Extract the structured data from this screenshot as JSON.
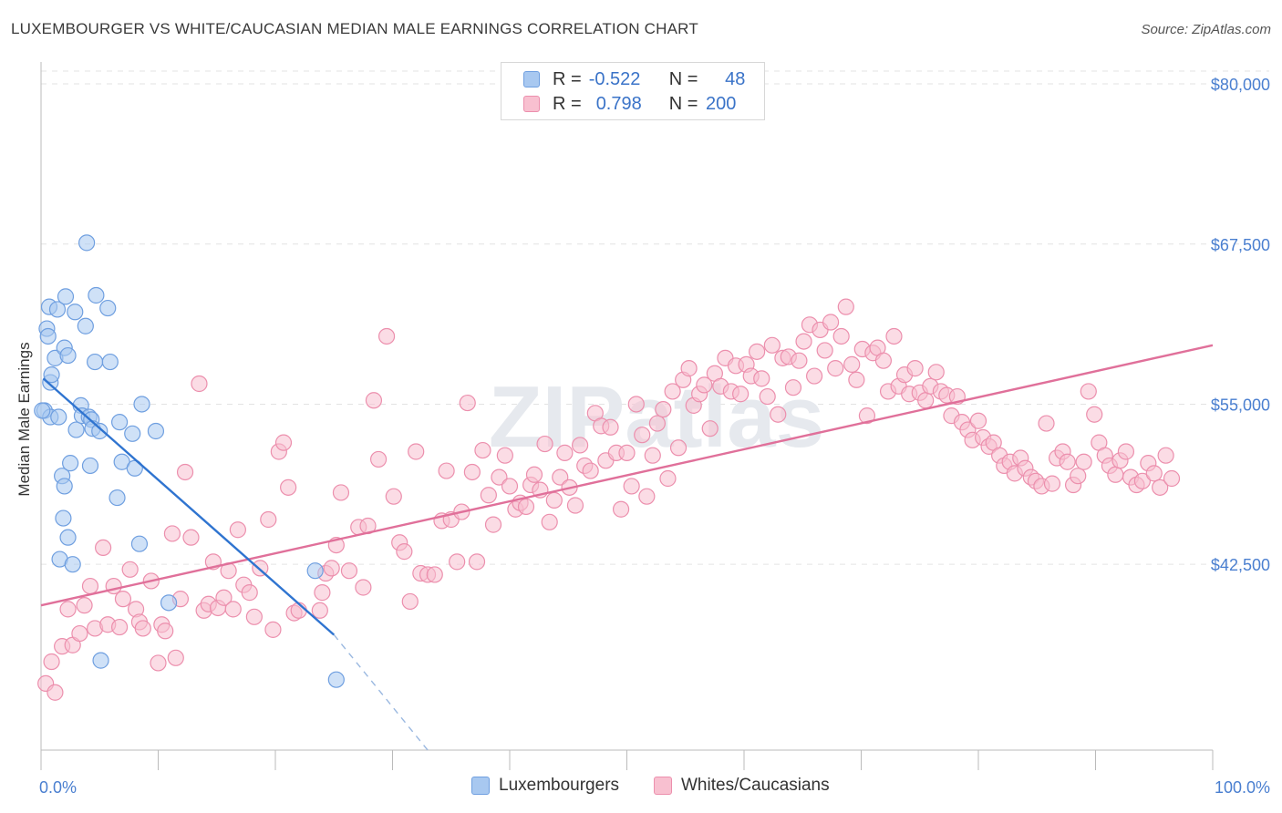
{
  "title": "LUXEMBOURGER VS WHITE/CAUCASIAN MEDIAN MALE EARNINGS CORRELATION CHART",
  "source": "Source: ZipAtlas.com",
  "watermark": "ZIPatlas",
  "legend": {
    "rows": [
      {
        "r_label": "R =",
        "r_value": "-0.522",
        "n_label": "N =",
        "n_value": "48",
        "color": "#a8c8f0",
        "stroke": "#6f9fe0"
      },
      {
        "r_label": "R =",
        "r_value": "0.798",
        "n_label": "N =",
        "n_value": "200",
        "color": "#f8c0d0",
        "stroke": "#ec8fad"
      }
    ]
  },
  "bottom_legend": [
    {
      "label": "Luxembourgers",
      "color": "#a8c8f0",
      "stroke": "#6f9fe0"
    },
    {
      "label": "Whites/Caucasians",
      "color": "#f8c0d0",
      "stroke": "#ec8fad"
    }
  ],
  "chart_data": {
    "type": "scatter",
    "xlabel": "",
    "ylabel": "Median Male Earnings",
    "x_tick_labels": [
      "0.0%",
      "100.0%"
    ],
    "y_tick_labels": [
      "$80,000",
      "$67,500",
      "$55,000",
      "$42,500"
    ],
    "y_ticks": [
      80000,
      67500,
      55000,
      42500
    ],
    "xlim": [
      0,
      100
    ],
    "ylim": [
      28000,
      81000
    ],
    "grid": true,
    "legend_placement": "top-center",
    "series": [
      {
        "name": "Luxembourgers",
        "color": "#6f9fe0",
        "fill": "#a8c8f0",
        "trend": {
          "x": [
            0.2,
            25
          ],
          "y": [
            57000,
            37000
          ],
          "dash_extend_to": [
            33,
            28000
          ]
        },
        "points": [
          [
            0.3,
            54500
          ],
          [
            0.5,
            60900
          ],
          [
            0.6,
            60300
          ],
          [
            0.7,
            62600
          ],
          [
            0.8,
            56700
          ],
          [
            0.8,
            54000
          ],
          [
            0.9,
            57300
          ],
          [
            1.2,
            58600
          ],
          [
            1.4,
            62400
          ],
          [
            1.5,
            54000
          ],
          [
            1.6,
            42900
          ],
          [
            1.8,
            49400
          ],
          [
            1.9,
            46100
          ],
          [
            2.0,
            48600
          ],
          [
            2.0,
            59400
          ],
          [
            2.1,
            63400
          ],
          [
            2.3,
            58800
          ],
          [
            2.3,
            44600
          ],
          [
            2.5,
            50400
          ],
          [
            2.7,
            42500
          ],
          [
            2.9,
            62200
          ],
          [
            3.0,
            53000
          ],
          [
            3.4,
            54900
          ],
          [
            3.5,
            54100
          ],
          [
            3.8,
            61100
          ],
          [
            3.9,
            67600
          ],
          [
            4.1,
            54000
          ],
          [
            4.2,
            50200
          ],
          [
            4.3,
            53800
          ],
          [
            4.4,
            53100
          ],
          [
            4.6,
            58300
          ],
          [
            4.7,
            63500
          ],
          [
            5.0,
            52900
          ],
          [
            5.1,
            35000
          ],
          [
            5.7,
            62500
          ],
          [
            5.9,
            58300
          ],
          [
            6.5,
            47700
          ],
          [
            6.7,
            53600
          ],
          [
            6.9,
            50500
          ],
          [
            7.8,
            52700
          ],
          [
            8.0,
            50000
          ],
          [
            8.4,
            44100
          ],
          [
            8.6,
            55000
          ],
          [
            9.8,
            52900
          ],
          [
            10.9,
            39500
          ],
          [
            23.4,
            42000
          ],
          [
            25.2,
            33500
          ],
          [
            0.1,
            54500
          ]
        ]
      },
      {
        "name": "Whites/Caucasians",
        "color": "#ec8fad",
        "fill": "#f8c0d0",
        "trend": {
          "x": [
            0,
            100
          ],
          "y": [
            39300,
            59600
          ]
        },
        "points": [
          [
            0.4,
            33200
          ],
          [
            0.9,
            34900
          ],
          [
            1.2,
            32500
          ],
          [
            1.8,
            36100
          ],
          [
            2.3,
            39000
          ],
          [
            2.7,
            36200
          ],
          [
            3.3,
            37100
          ],
          [
            3.7,
            39300
          ],
          [
            4.2,
            40800
          ],
          [
            4.6,
            37500
          ],
          [
            5.3,
            43800
          ],
          [
            5.7,
            37800
          ],
          [
            6.2,
            40800
          ],
          [
            6.7,
            37600
          ],
          [
            7.0,
            39800
          ],
          [
            7.6,
            42100
          ],
          [
            8.1,
            39000
          ],
          [
            8.4,
            38000
          ],
          [
            8.7,
            37500
          ],
          [
            9.4,
            41200
          ],
          [
            10.0,
            34800
          ],
          [
            10.3,
            37800
          ],
          [
            10.6,
            37300
          ],
          [
            11.2,
            44900
          ],
          [
            11.5,
            35200
          ],
          [
            11.9,
            39800
          ],
          [
            12.3,
            49700
          ],
          [
            12.8,
            44600
          ],
          [
            13.5,
            56600
          ],
          [
            13.9,
            38900
          ],
          [
            14.3,
            39400
          ],
          [
            14.7,
            42700
          ],
          [
            15.1,
            39100
          ],
          [
            15.6,
            39900
          ],
          [
            16.0,
            42000
          ],
          [
            16.4,
            39000
          ],
          [
            16.8,
            45200
          ],
          [
            17.3,
            40900
          ],
          [
            17.8,
            40300
          ],
          [
            18.2,
            38400
          ],
          [
            18.7,
            42200
          ],
          [
            19.4,
            46000
          ],
          [
            19.8,
            37400
          ],
          [
            20.3,
            51300
          ],
          [
            20.7,
            52000
          ],
          [
            21.1,
            48500
          ],
          [
            21.6,
            38700
          ],
          [
            22.0,
            38900
          ],
          [
            23.8,
            38900
          ],
          [
            24.0,
            40300
          ],
          [
            24.3,
            41800
          ],
          [
            24.8,
            42200
          ],
          [
            25.2,
            44000
          ],
          [
            25.6,
            48100
          ],
          [
            26.3,
            42000
          ],
          [
            27.1,
            45400
          ],
          [
            27.5,
            40700
          ],
          [
            27.9,
            45500
          ],
          [
            28.4,
            55300
          ],
          [
            28.8,
            50700
          ],
          [
            29.5,
            60300
          ],
          [
            30.1,
            47800
          ],
          [
            30.6,
            44200
          ],
          [
            31.0,
            43500
          ],
          [
            31.5,
            39600
          ],
          [
            32.0,
            51300
          ],
          [
            32.4,
            41800
          ],
          [
            33.0,
            41700
          ],
          [
            33.6,
            41700
          ],
          [
            34.2,
            45900
          ],
          [
            34.6,
            49800
          ],
          [
            35.0,
            46000
          ],
          [
            35.5,
            42700
          ],
          [
            35.9,
            46600
          ],
          [
            36.4,
            55100
          ],
          [
            36.8,
            49700
          ],
          [
            37.2,
            42700
          ],
          [
            37.7,
            51400
          ],
          [
            38.2,
            47900
          ],
          [
            38.6,
            45600
          ],
          [
            39.1,
            49300
          ],
          [
            39.6,
            51000
          ],
          [
            40.0,
            48600
          ],
          [
            40.5,
            46800
          ],
          [
            40.9,
            47300
          ],
          [
            41.4,
            47000
          ],
          [
            41.8,
            48700
          ],
          [
            42.1,
            49500
          ],
          [
            42.6,
            48300
          ],
          [
            43.0,
            51900
          ],
          [
            43.4,
            45800
          ],
          [
            43.8,
            47500
          ],
          [
            44.3,
            49300
          ],
          [
            44.7,
            51200
          ],
          [
            45.1,
            48500
          ],
          [
            45.6,
            47100
          ],
          [
            46.0,
            51800
          ],
          [
            46.4,
            50200
          ],
          [
            46.9,
            49800
          ],
          [
            47.3,
            54300
          ],
          [
            47.8,
            53300
          ],
          [
            48.2,
            50600
          ],
          [
            48.6,
            53200
          ],
          [
            49.1,
            51200
          ],
          [
            49.5,
            46800
          ],
          [
            50.0,
            51200
          ],
          [
            50.4,
            48600
          ],
          [
            50.8,
            55000
          ],
          [
            51.3,
            52600
          ],
          [
            51.7,
            47800
          ],
          [
            52.2,
            51000
          ],
          [
            52.6,
            53500
          ],
          [
            53.1,
            54600
          ],
          [
            53.5,
            49200
          ],
          [
            53.9,
            56000
          ],
          [
            54.4,
            51600
          ],
          [
            54.8,
            56900
          ],
          [
            55.3,
            57800
          ],
          [
            55.7,
            54900
          ],
          [
            56.2,
            55800
          ],
          [
            56.6,
            56500
          ],
          [
            57.1,
            53100
          ],
          [
            57.5,
            57400
          ],
          [
            58.0,
            56400
          ],
          [
            58.4,
            58600
          ],
          [
            58.9,
            56000
          ],
          [
            59.3,
            58000
          ],
          [
            59.7,
            55800
          ],
          [
            60.2,
            58100
          ],
          [
            60.6,
            57200
          ],
          [
            61.1,
            59100
          ],
          [
            61.5,
            57000
          ],
          [
            62.0,
            55600
          ],
          [
            62.4,
            59600
          ],
          [
            62.9,
            54200
          ],
          [
            63.3,
            58600
          ],
          [
            63.8,
            58700
          ],
          [
            64.2,
            56300
          ],
          [
            64.7,
            58400
          ],
          [
            65.1,
            59900
          ],
          [
            65.6,
            61200
          ],
          [
            66.0,
            57200
          ],
          [
            66.5,
            60800
          ],
          [
            66.9,
            59200
          ],
          [
            67.4,
            61400
          ],
          [
            67.8,
            57800
          ],
          [
            68.3,
            60300
          ],
          [
            68.7,
            62600
          ],
          [
            69.2,
            58100
          ],
          [
            69.6,
            56900
          ],
          [
            70.1,
            59300
          ],
          [
            70.5,
            54100
          ],
          [
            71.0,
            59000
          ],
          [
            71.4,
            59400
          ],
          [
            71.9,
            58400
          ],
          [
            72.3,
            56000
          ],
          [
            72.8,
            60300
          ],
          [
            73.2,
            56400
          ],
          [
            73.7,
            57300
          ],
          [
            74.1,
            55800
          ],
          [
            74.6,
            57800
          ],
          [
            75.0,
            55900
          ],
          [
            75.5,
            55300
          ],
          [
            75.9,
            56400
          ],
          [
            76.4,
            57500
          ],
          [
            76.8,
            56000
          ],
          [
            77.3,
            55700
          ],
          [
            77.7,
            54100
          ],
          [
            78.2,
            55600
          ],
          [
            78.6,
            53600
          ],
          [
            79.1,
            53000
          ],
          [
            79.5,
            52200
          ],
          [
            80.0,
            53700
          ],
          [
            80.4,
            52400
          ],
          [
            80.9,
            51700
          ],
          [
            81.3,
            52000
          ],
          [
            81.8,
            51000
          ],
          [
            82.2,
            50200
          ],
          [
            82.7,
            50500
          ],
          [
            83.1,
            49600
          ],
          [
            83.6,
            50800
          ],
          [
            84.0,
            50000
          ],
          [
            84.5,
            49300
          ],
          [
            84.9,
            49000
          ],
          [
            85.4,
            48600
          ],
          [
            85.8,
            53500
          ],
          [
            86.3,
            48800
          ],
          [
            86.7,
            50800
          ],
          [
            87.2,
            51300
          ],
          [
            87.6,
            50500
          ],
          [
            88.1,
            48700
          ],
          [
            88.5,
            49400
          ],
          [
            89.0,
            50500
          ],
          [
            89.4,
            56000
          ],
          [
            89.9,
            54200
          ],
          [
            90.3,
            52000
          ],
          [
            90.8,
            51000
          ],
          [
            91.2,
            50200
          ],
          [
            91.7,
            49500
          ],
          [
            92.1,
            50600
          ],
          [
            92.6,
            51300
          ],
          [
            93.0,
            49300
          ],
          [
            93.5,
            48700
          ],
          [
            94.0,
            49000
          ],
          [
            94.5,
            50400
          ],
          [
            95.0,
            49600
          ],
          [
            95.5,
            48500
          ],
          [
            96.0,
            51000
          ],
          [
            96.5,
            49200
          ]
        ]
      }
    ]
  }
}
